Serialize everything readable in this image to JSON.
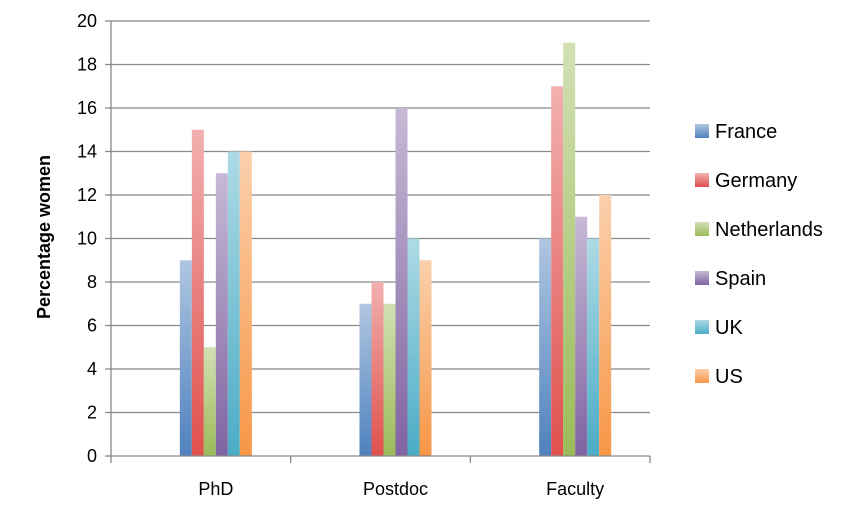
{
  "chart_data": {
    "type": "bar",
    "title": "",
    "xlabel": "",
    "ylabel": "Percentage women",
    "categories": [
      "PhD",
      "Postdoc",
      "Faculty"
    ],
    "ylim": [
      0,
      20
    ],
    "yticks": [
      0,
      2,
      4,
      6,
      8,
      10,
      12,
      14,
      16,
      18,
      20
    ],
    "grid": true,
    "legend_position": "right",
    "series": [
      {
        "name": "France",
        "values": [
          9,
          7,
          10
        ],
        "color": "#4F81BD"
      },
      {
        "name": "Germany",
        "values": [
          15,
          8,
          17
        ],
        "color": "#E0504D"
      },
      {
        "name": "Netherlands",
        "values": [
          5,
          7,
          19
        ],
        "color": "#9BBB59"
      },
      {
        "name": "Spain",
        "values": [
          13,
          16,
          11
        ],
        "color": "#8064A2"
      },
      {
        "name": "UK",
        "values": [
          14,
          10,
          10
        ],
        "color": "#4BACC6"
      },
      {
        "name": "US",
        "values": [
          14,
          9,
          12
        ],
        "color": "#F79646"
      }
    ]
  }
}
